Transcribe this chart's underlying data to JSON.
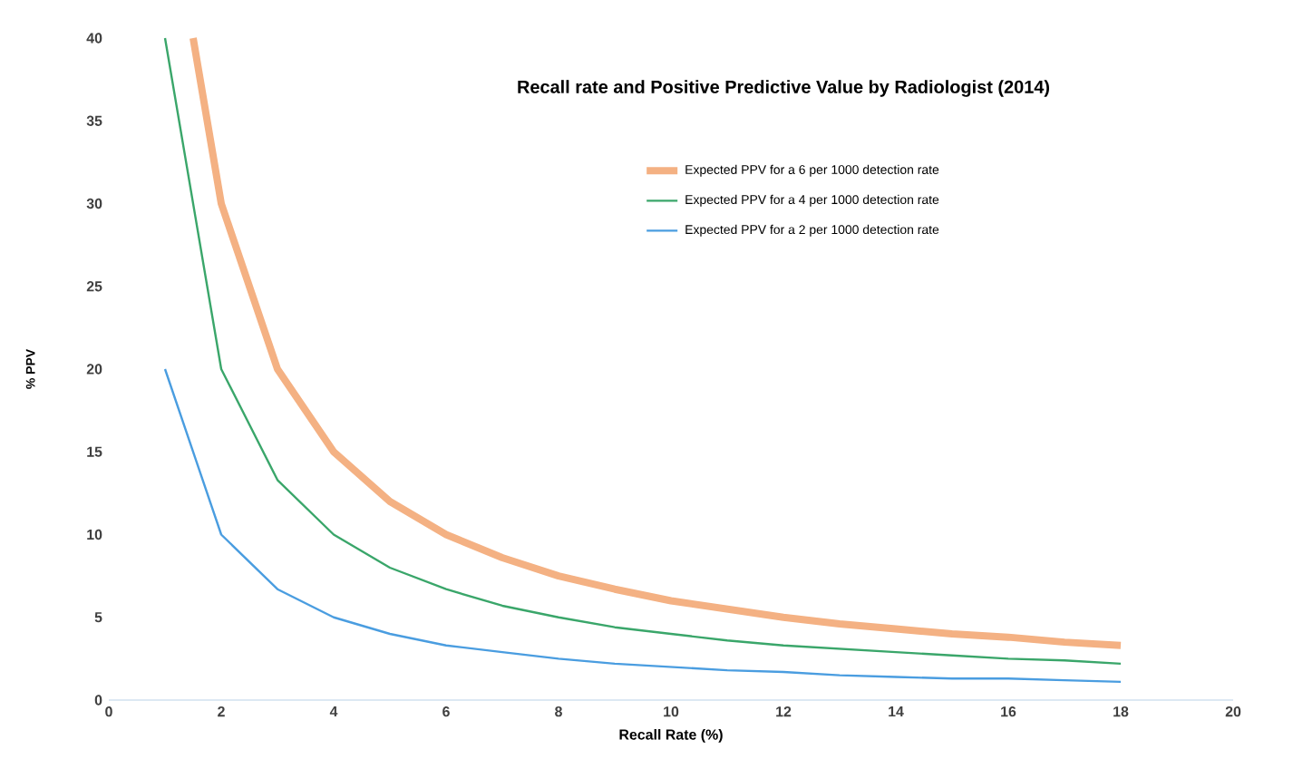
{
  "chart_data": {
    "type": "line",
    "title": "Recall rate and Positive Predictive Value by Radiologist (2014)",
    "xlabel": "Recall Rate (%)",
    "ylabel": "% PPV",
    "xlim": [
      0,
      20
    ],
    "xticks": [
      0,
      2,
      4,
      6,
      8,
      10,
      12,
      14,
      16,
      18,
      20
    ],
    "ylim": [
      0,
      40
    ],
    "yticks": [
      0,
      5,
      10,
      15,
      20,
      25,
      30,
      35,
      40
    ],
    "grid": false,
    "legend": "top right",
    "marker": "none",
    "line_style": "solid",
    "series": [
      {
        "name": "Expected PPV for a 6 per 1000 detection rate",
        "color": "#f4b183",
        "x": [
          1.5,
          2,
          3,
          4,
          5,
          6,
          7,
          8,
          9,
          10,
          11,
          12,
          13,
          14,
          15,
          16,
          17,
          18
        ],
        "values": [
          40,
          30,
          20,
          15,
          12,
          10,
          8.6,
          7.5,
          6.7,
          6,
          5.5,
          5,
          4.6,
          4.3,
          4,
          3.8,
          3.5,
          3.3
        ]
      },
      {
        "name": "Expected PPV for a 4 per 1000 detection rate",
        "color": "#3aa66a",
        "x": [
          1,
          2,
          3,
          4,
          5,
          6,
          7,
          8,
          9,
          10,
          11,
          12,
          13,
          14,
          15,
          16,
          17,
          18
        ],
        "values": [
          40,
          20,
          13.3,
          10,
          8,
          6.7,
          5.7,
          5,
          4.4,
          4,
          3.6,
          3.3,
          3.1,
          2.9,
          2.7,
          2.5,
          2.4,
          2.2
        ]
      },
      {
        "name": "Expected PPV for a 2 per 1000 detection rate",
        "color": "#4a9de0",
        "x": [
          1,
          2,
          3,
          4,
          5,
          6,
          7,
          8,
          9,
          10,
          11,
          12,
          13,
          14,
          15,
          16,
          17,
          18
        ],
        "values": [
          20,
          10,
          6.7,
          5,
          4,
          3.3,
          2.9,
          2.5,
          2.2,
          2,
          1.8,
          1.7,
          1.5,
          1.4,
          1.3,
          1.3,
          1.2,
          1.1
        ]
      }
    ]
  }
}
